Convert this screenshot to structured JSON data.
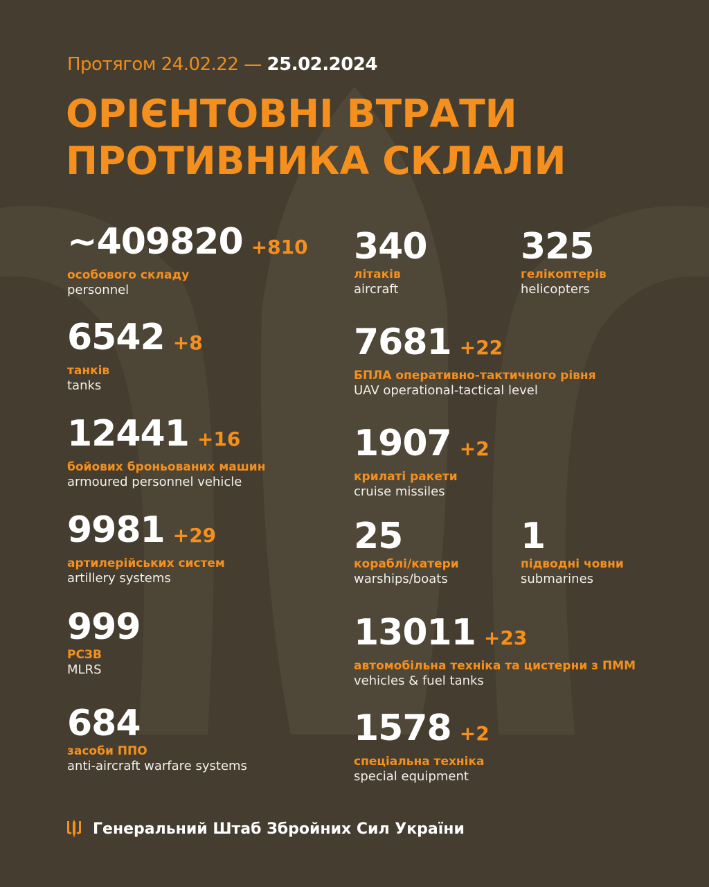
{
  "header": {
    "period_prefix": "Протягом 24.02.22 —",
    "period_date": "25.02.2024",
    "title_line1": "ОРІЄНТОВНІ ВТРАТИ",
    "title_line2": "ПРОТИВНИКА СКЛАЛИ"
  },
  "colors": {
    "background": "#453e30",
    "accent": "#f5901e",
    "text": "#ffffff"
  },
  "stats": [
    {
      "value": "~409820",
      "delta": "+810",
      "ua": "особового складу",
      "en": "personnel"
    },
    {
      "value": "6542",
      "delta": "+8",
      "ua": "танків",
      "en": "tanks"
    },
    {
      "value": "12441",
      "delta": "+16",
      "ua": "бойових броньованих машин",
      "en": "armoured personnel vehicle"
    },
    {
      "value": "9981",
      "delta": "+29",
      "ua": "артилерійських систем",
      "en": "artillery systems"
    },
    {
      "value": "999",
      "delta": "",
      "ua": "РСЗВ",
      "en": "MLRS"
    },
    {
      "value": "684",
      "delta": "",
      "ua": "засоби ППО",
      "en": "anti-aircraft warfare systems"
    },
    {
      "value": "340",
      "delta": "",
      "ua": "літаків",
      "en": "aircraft"
    },
    {
      "value": "325",
      "delta": "",
      "ua": "гелікоптерів",
      "en": "helicopters"
    },
    {
      "value": "7681",
      "delta": "+22",
      "ua": "БПЛА оперативно-тактичного рівня",
      "en": "UAV operational-tactical level"
    },
    {
      "value": "1907",
      "delta": "+2",
      "ua": "крилаті ракети",
      "en": "cruise missiles"
    },
    {
      "value": "25",
      "delta": "",
      "ua": "кораблі/катери",
      "en": "warships/boats"
    },
    {
      "value": "1",
      "delta": "",
      "ua": "підводні човни",
      "en": "submarines"
    },
    {
      "value": "13011",
      "delta": "+23",
      "ua": "автомобільна техніка та цистерни з ПММ",
      "en": "vehicles & fuel tanks"
    },
    {
      "value": "1578",
      "delta": "+2",
      "ua": "спеціальна техніка",
      "en": "special equipment"
    }
  ],
  "footer": {
    "icon": "trident-icon",
    "text": "Генеральний Штаб Збройних Сил України"
  }
}
